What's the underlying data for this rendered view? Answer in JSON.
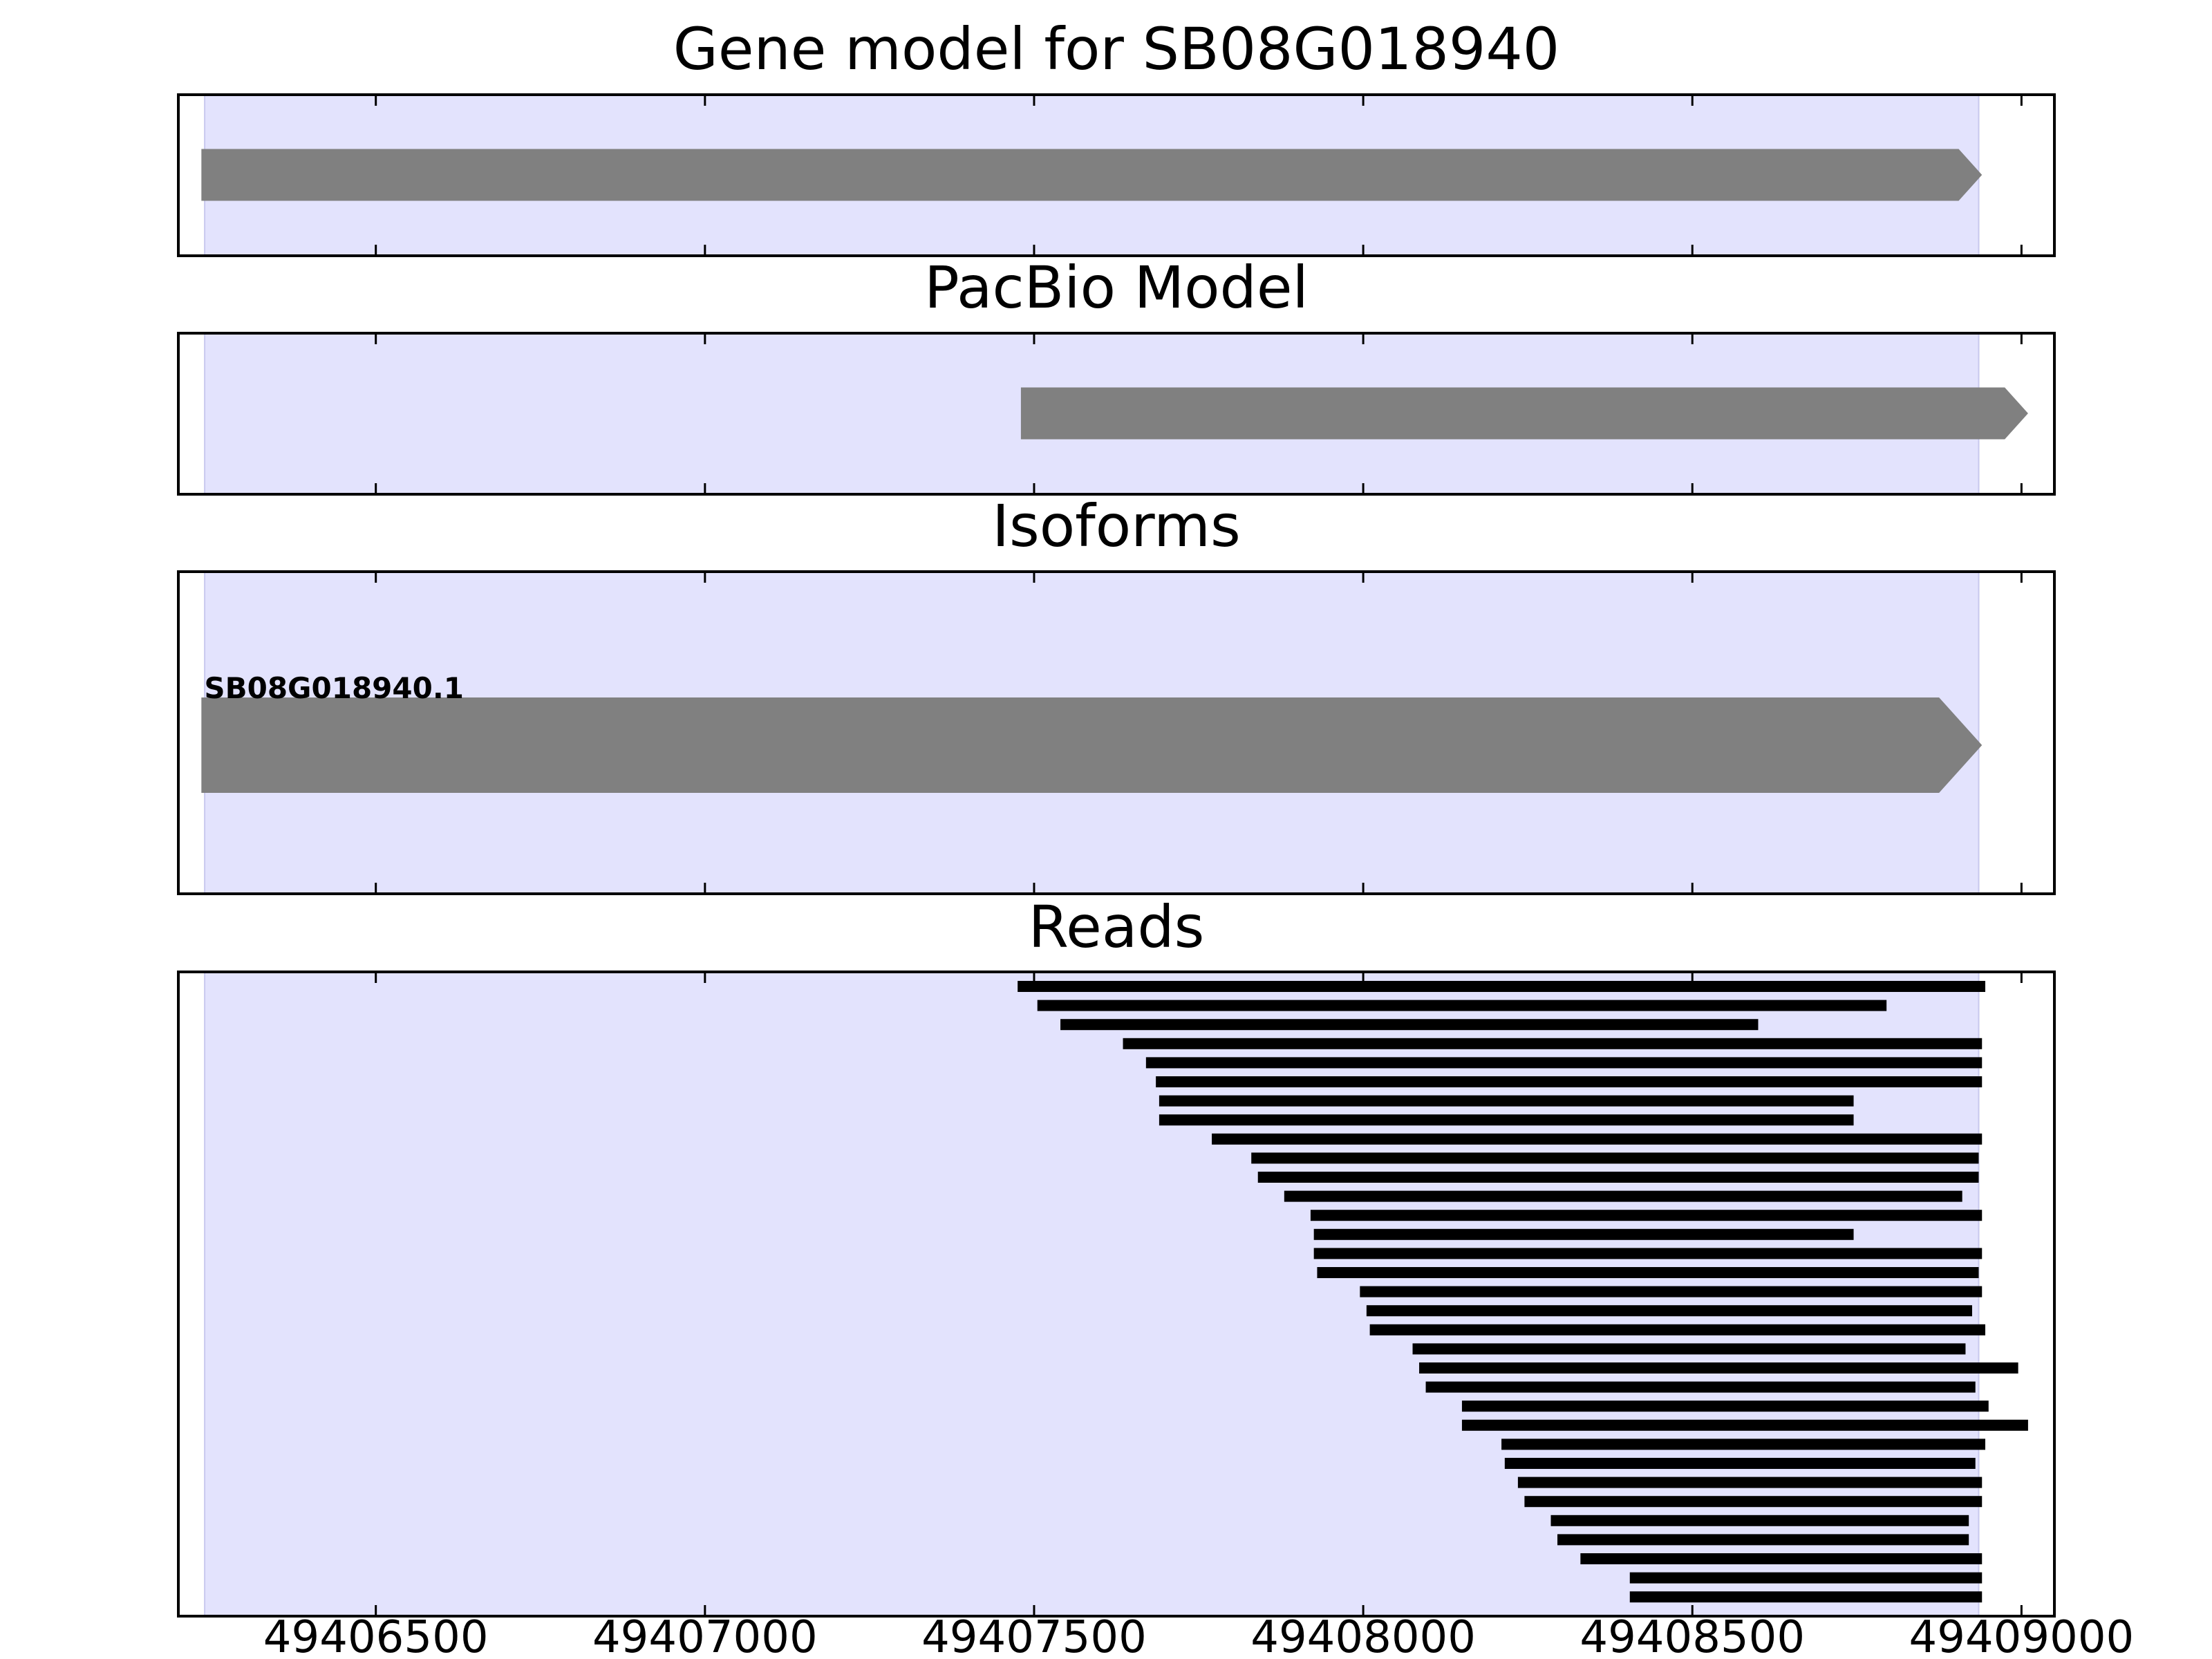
{
  "chart_data": {
    "type": "gene-track",
    "xlim": [
      49406200,
      49409050
    ],
    "highlight_range": [
      49406240,
      49408935
    ],
    "highlight_color": "#e3e3fd",
    "feature_color": "#808080",
    "read_color": "#000000",
    "x_ticks": [
      49406500,
      49407000,
      49407500,
      49408000,
      49408500,
      49409000
    ],
    "x_tick_labels": [
      "49406500",
      "49407000",
      "49407500",
      "49408000",
      "49408500",
      "49409000"
    ],
    "panels": [
      {
        "title": "Gene model for SB08G018940",
        "features": [
          {
            "start": 49406235,
            "end": 49408940,
            "strand": "+"
          }
        ]
      },
      {
        "title": "PacBio Model",
        "features": [
          {
            "start": 49407480,
            "end": 49409010,
            "strand": "+"
          }
        ]
      },
      {
        "title": "Isoforms",
        "isoforms": [
          {
            "name": "SB08G018940.1",
            "start": 49406235,
            "end": 49408940,
            "strand": "+"
          }
        ]
      },
      {
        "title": "Reads",
        "reads": [
          [
            49407475,
            49408945
          ],
          [
            49407505,
            49408795
          ],
          [
            49407540,
            49408600
          ],
          [
            49407635,
            49408940
          ],
          [
            49407670,
            49408940
          ],
          [
            49407685,
            49408940
          ],
          [
            49407690,
            49408745
          ],
          [
            49407690,
            49408745
          ],
          [
            49407770,
            49408940
          ],
          [
            49407830,
            49408935
          ],
          [
            49407840,
            49408935
          ],
          [
            49407880,
            49408910
          ],
          [
            49407920,
            49408940
          ],
          [
            49407925,
            49408745
          ],
          [
            49407925,
            49408940
          ],
          [
            49407930,
            49408935
          ],
          [
            49407995,
            49408940
          ],
          [
            49408005,
            49408925
          ],
          [
            49408010,
            49408945
          ],
          [
            49408075,
            49408915
          ],
          [
            49408085,
            49408995
          ],
          [
            49408095,
            49408930
          ],
          [
            49408150,
            49408950
          ],
          [
            49408150,
            49409010
          ],
          [
            49408210,
            49408945
          ],
          [
            49408215,
            49408930
          ],
          [
            49408235,
            49408940
          ],
          [
            49408245,
            49408940
          ],
          [
            49408285,
            49408920
          ],
          [
            49408295,
            49408920
          ],
          [
            49408330,
            49408940
          ],
          [
            49408405,
            49408940
          ],
          [
            49408405,
            49408940
          ]
        ]
      }
    ]
  }
}
